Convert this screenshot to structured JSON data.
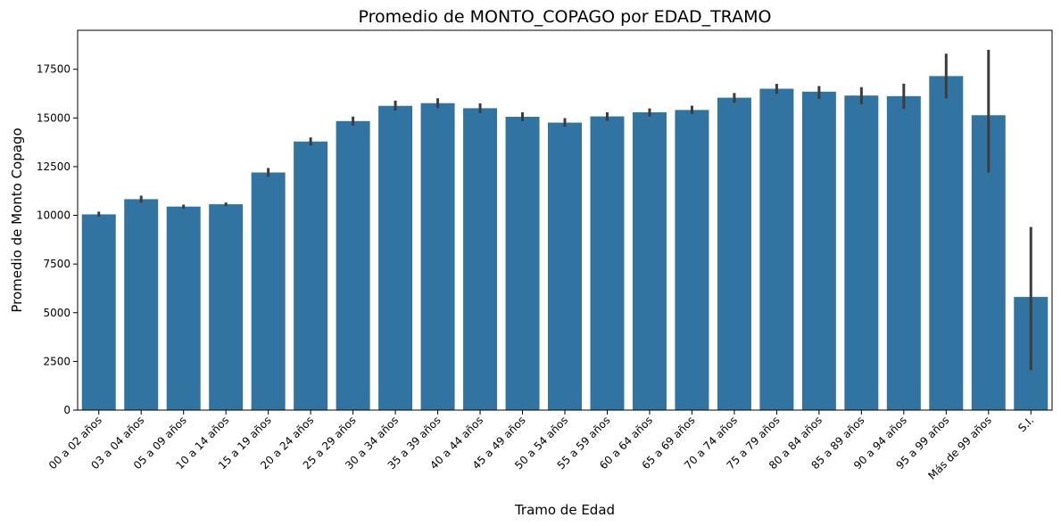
{
  "chart_data": {
    "type": "bar",
    "title": "Promedio de MONTO_COPAGO por EDAD_TRAMO",
    "xlabel": "Tramo de Edad",
    "ylabel": "Promedio de Monto Copago",
    "ylim": [
      0,
      19500
    ],
    "yticks": [
      0,
      2500,
      5000,
      7500,
      10000,
      12500,
      15000,
      17500
    ],
    "grid": false,
    "bar_color": "#3274a1",
    "error_bar_color": "#3c3c3c",
    "categories": [
      "00 a 02 años",
      "03 a 04 años",
      "05 a 09 años",
      "10 a 14 años",
      "15 a 19 años",
      "20 a 24 años",
      "25 a 29 años",
      "30 a 34 años",
      "35 a 39 años",
      "40 a 44 años",
      "45 a 49 años",
      "50 a 54 años",
      "55 a 59 años",
      "60 a 64 años",
      "65 a 69 años",
      "70 a 74 años",
      "75 a 79 años",
      "80 a 84 años",
      "85 a 89 años",
      "90 a 94 años",
      "95 a 99 años",
      "Más de 99 años",
      "S.I."
    ],
    "values": [
      10050,
      10830,
      10450,
      10570,
      12200,
      13790,
      14840,
      15620,
      15760,
      15500,
      15060,
      14760,
      15080,
      15290,
      15410,
      16040,
      16500,
      16350,
      16150,
      16120,
      17150,
      15140,
      5810
    ],
    "error_low": [
      9940,
      10650,
      10350,
      10480,
      11980,
      13580,
      14610,
      15380,
      15500,
      15250,
      14830,
      14550,
      14850,
      15080,
      15190,
      15780,
      16240,
      15980,
      15700,
      15460,
      16000,
      12200,
      2050
    ],
    "error_high": [
      10190,
      11010,
      10550,
      10660,
      12430,
      14000,
      15070,
      15890,
      16010,
      15750,
      15290,
      14990,
      15290,
      15490,
      15630,
      16280,
      16750,
      16640,
      16580,
      16760,
      18300,
      18500,
      9400
    ]
  }
}
